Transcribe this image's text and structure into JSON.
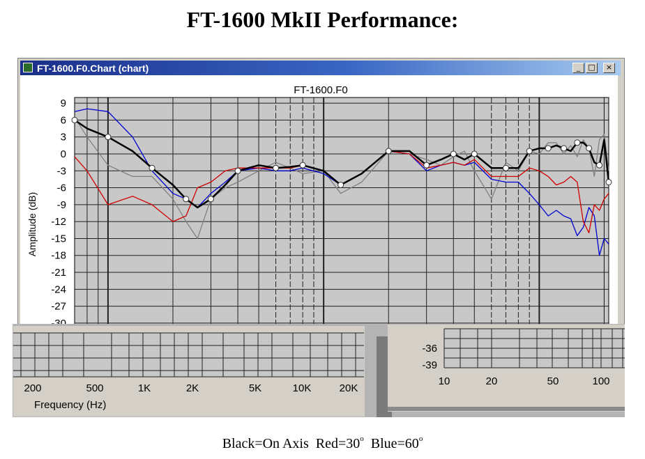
{
  "page": {
    "title": "FT-1600 MkII Performance:",
    "caption": {
      "black_label": "Black=On Axis",
      "red_label": "Red=30",
      "blue_label": "Blue=60",
      "degree_mark": "o"
    }
  },
  "window": {
    "title": "FT-1600.F0.Chart (chart)",
    "buttons": {
      "minimize": "_",
      "maximize": "□",
      "close": "×"
    }
  },
  "chart_data": [
    {
      "type": "line",
      "title": "FT-1600.F0",
      "ylabel": "Amplitude (dB)",
      "xlabel": "",
      "x_scale": "log",
      "xlim": [
        70,
        21000
      ],
      "ylim": [
        -31,
        10
      ],
      "y_ticks": [
        9,
        6,
        3,
        0,
        -3,
        -6,
        -9,
        -12,
        -15,
        -18,
        -21,
        -24,
        -27,
        -30
      ],
      "grid": true,
      "colors": {
        "plot_bg": "#c8c8c8",
        "grid": "#202020"
      },
      "series": [
        {
          "color": "#000000",
          "markers": true,
          "x": [
            70,
            80,
            100,
            130,
            160,
            200,
            230,
            260,
            300,
            350,
            400,
            500,
            600,
            700,
            800,
            1000,
            1200,
            1500,
            2000,
            2500,
            3000,
            3500,
            4000,
            4500,
            5000,
            6000,
            7000,
            8000,
            9000,
            10000,
            11000,
            12000,
            13000,
            14000,
            15000,
            16000,
            17000,
            18000,
            19000,
            20000,
            21000
          ],
          "y": [
            6,
            4.5,
            3,
            0.5,
            -2.5,
            -5.5,
            -8,
            -9.5,
            -8,
            -5.5,
            -3,
            -2,
            -2.5,
            -2.3,
            -2,
            -3,
            -5.5,
            -3.5,
            0.5,
            0.5,
            -2,
            -1,
            0,
            -1,
            0,
            -2.5,
            -2.5,
            -2.5,
            0.5,
            1,
            1,
            1.5,
            1,
            0.5,
            2,
            2,
            1,
            -1.5,
            -2,
            2.5,
            -5
          ]
        },
        {
          "color": "#d00000",
          "markers": false,
          "x": [
            70,
            80,
            100,
            130,
            160,
            200,
            230,
            260,
            300,
            350,
            400,
            500,
            600,
            700,
            800,
            1000,
            1200,
            1500,
            2000,
            2500,
            3000,
            3500,
            4000,
            4500,
            5000,
            6000,
            7000,
            8000,
            9000,
            10000,
            11000,
            12000,
            13000,
            14000,
            15000,
            16000,
            17000,
            18000,
            19000,
            20000,
            21000
          ],
          "y": [
            -0.5,
            -3,
            -9,
            -7.5,
            -9,
            -12,
            -11,
            -6,
            -5,
            -3,
            -2.5,
            -2.5,
            -2.5,
            -2.5,
            -2,
            -3,
            -5.5,
            -3.5,
            0.5,
            0,
            -2.5,
            -2,
            -1.5,
            -2,
            -1,
            -4,
            -4,
            -4,
            -2.5,
            -3,
            -4,
            -5.5,
            -5,
            -4,
            -5,
            -12,
            -14,
            -9,
            -10,
            -8,
            -7
          ]
        },
        {
          "color": "#0000d0",
          "markers": false,
          "x": [
            70,
            80,
            100,
            130,
            160,
            200,
            230,
            260,
            300,
            350,
            400,
            500,
            600,
            700,
            800,
            1000,
            1200,
            1500,
            2000,
            2500,
            3000,
            3500,
            4000,
            4500,
            5000,
            6000,
            7000,
            8000,
            9000,
            10000,
            11000,
            12000,
            13000,
            14000,
            15000,
            16000,
            17000,
            18000,
            19000,
            20000,
            21000
          ],
          "y": [
            7.5,
            8,
            7.5,
            3,
            -3,
            -7,
            -8,
            -9.5,
            -7,
            -5,
            -3,
            -2.5,
            -3,
            -3,
            -2.5,
            -3.5,
            -5.5,
            -3.5,
            0.5,
            0,
            -3,
            -2,
            -1.5,
            -2,
            -1.5,
            -4.5,
            -5,
            -5,
            -7,
            -9,
            -11,
            -10,
            -11,
            -11.5,
            -14.5,
            -13,
            -9.5,
            -11,
            -18,
            -15,
            -16
          ]
        },
        {
          "color": "#808080",
          "markers": false,
          "x": [
            70,
            80,
            100,
            130,
            160,
            200,
            230,
            260,
            300,
            350,
            400,
            500,
            600,
            700,
            800,
            1000,
            1200,
            1500,
            2000,
            2500,
            3000,
            3500,
            4000,
            4500,
            5000,
            6000,
            7000,
            8000,
            9000,
            10000,
            11000,
            12000,
            13000,
            14000,
            15000,
            16000,
            17000,
            18000,
            19000,
            20000,
            21000
          ],
          "y": [
            6.5,
            3,
            -2,
            -4,
            -4,
            -8,
            -12,
            -15,
            -8,
            -6,
            -5,
            -3,
            -1.5,
            -2.5,
            -3.5,
            -3,
            -7,
            -5,
            0.5,
            0,
            -1,
            -2,
            -0.5,
            0.5,
            -3,
            -8,
            -1.5,
            -3,
            0.5,
            0,
            2,
            2,
            0,
            1.5,
            -0.5,
            2.5,
            1,
            -4,
            2.5,
            3.5,
            -3
          ]
        }
      ]
    },
    {
      "type": "line",
      "xlabel": "Frequency (Hz)",
      "x_tick_labels": [
        "200",
        "500",
        "1K",
        "2K",
        "5K",
        "10K",
        "20K"
      ],
      "grid": true
    },
    {
      "type": "line",
      "y_tick_labels": [
        "-36",
        "-39"
      ],
      "x_tick_labels": [
        "10",
        "20",
        "50",
        "100"
      ],
      "grid": true
    }
  ]
}
